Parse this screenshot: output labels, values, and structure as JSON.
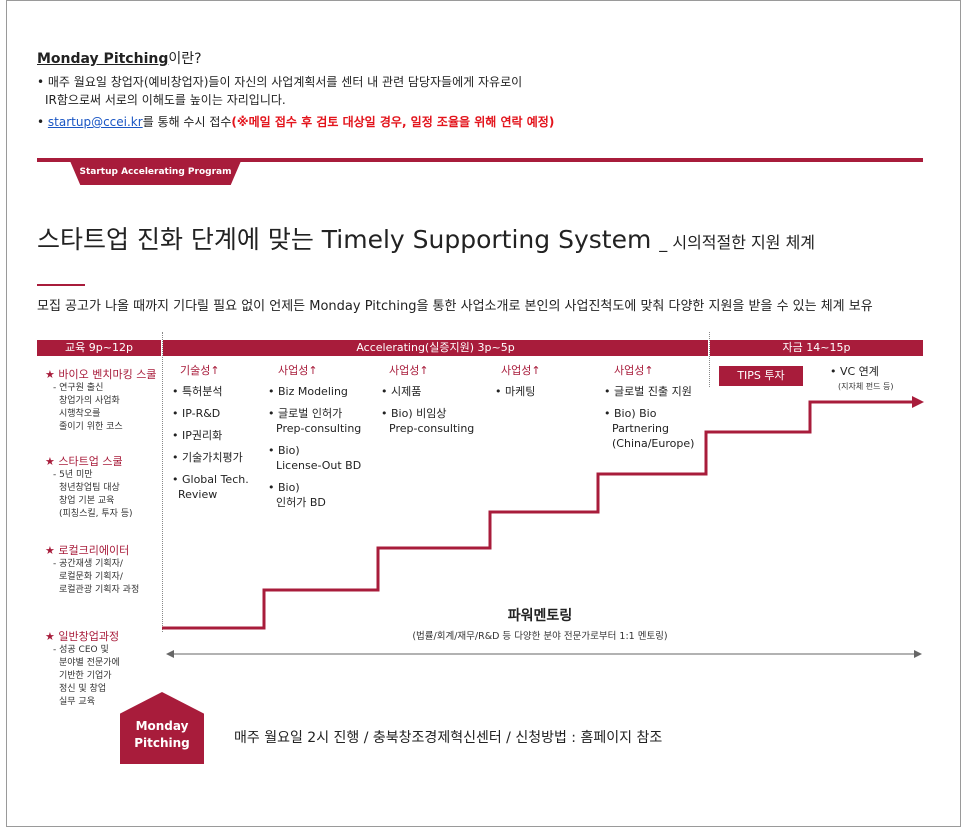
{
  "intro": {
    "title_bold": "Monday  Pitching",
    "title_rest": "이란?",
    "bullet1_line1": "• 매주 월요일 창업자(예비창업자)들이 자신의 사업계획서를 센터 내 관련 담당자들에게 자유로이",
    "bullet1_line2": "IR함으로써 서로의 이해도를 높이는 자리입니다.",
    "bullet2_prefix": "• ",
    "email": "startup@ccei.kr",
    "bullet2_mid": "를 통해 수시 접수",
    "bullet2_warn": "(※메일 접수 후 검토 대상일 경우, 일정 조율을 위해 연락 예정)"
  },
  "tab_label": "Startup Accelerating Program",
  "main_title": "스타트업 진화 단계에 맞는 Timely Supporting System",
  "main_title_sub": "_ 시의적절한 지원 체계",
  "description": "모집 공고가 나올 때까지 기다릴 필요 없이 언제든 Monday Pitching을 통한 사업소개로 본인의 사업진척도에 맞춰 다양한 지원을 받을 수 있는 체계 보유",
  "phases": {
    "education": "교육  9p~12p",
    "accelerating": "Accelerating(실증지원)  3p~5p",
    "funding": "자금  14~15p"
  },
  "left_programs": [
    {
      "head": "★ 바이오 벤치마킹 스쿨",
      "lines": [
        "- 연구원 출신",
        "창업가의 사업화",
        "시행착오를",
        "줄이기 위한 코스"
      ]
    },
    {
      "head": "★ 스타트업 스쿨",
      "lines": [
        "- 5년 미만",
        "청년창업팀 대상",
        "창업 기본 교육",
        "(피칭스킬, 투자 등)"
      ]
    },
    {
      "head": "★ 로컬크리에이터",
      "lines": [
        "- 공간재생 기획자/",
        "로컬문화 기획자/",
        "로컬관광 기획자 과정"
      ]
    },
    {
      "head": "★ 일반창업과정",
      "lines": [
        "- 성공 CEO 및",
        "분야별 전문가에",
        "기반한 기업가",
        "정신 및 창업",
        "실무 교육"
      ]
    }
  ],
  "columns": [
    {
      "head": "기술성↑",
      "items": [
        [
          "• 특허분석"
        ],
        [
          "• IP-R&D"
        ],
        [
          "• IP권리화"
        ],
        [
          "• 기술가치평가"
        ],
        [
          "• Global Tech.",
          "Review"
        ]
      ]
    },
    {
      "head": "사업성↑",
      "items": [
        [
          "• Biz Modeling"
        ],
        [
          "• 글로벌 인허가",
          "Prep-consulting"
        ],
        [
          "• Bio)",
          "License-Out BD"
        ],
        [
          "• Bio)",
          "인허가 BD"
        ]
      ]
    },
    {
      "head": "사업성↑",
      "items": [
        [
          "• 시제품"
        ],
        [
          "• Bio) 비임상",
          "Prep-consulting"
        ]
      ]
    },
    {
      "head": "사업성↑",
      "items": [
        [
          "• 마케팅"
        ]
      ]
    },
    {
      "head": "사업성↑",
      "items": [
        [
          "• 글로벌 진출 지원"
        ],
        [
          "• Bio) Bio",
          "Partnering",
          "(China/Europe)"
        ]
      ]
    }
  ],
  "tips_label": "TIPS 투자",
  "vc_label": "• VC 연계",
  "vc_sub": "(지자체 펀드 등)",
  "mentoring_title": "파워멘토링",
  "mentoring_sub": "(법률/회계/재무/R&D 등 다양한 분야 전문가로부터 1:1 멘토링)",
  "badge_line1": "Monday",
  "badge_line2": "Pitching",
  "footer": "매주 월요일 2시 진행  /  충북창조경제혁신센터  /  신청방법 : 홈페이지 참조",
  "colors": {
    "brand": "#a81c3b",
    "warn": "#e3141c",
    "link": "#1a56c4"
  }
}
